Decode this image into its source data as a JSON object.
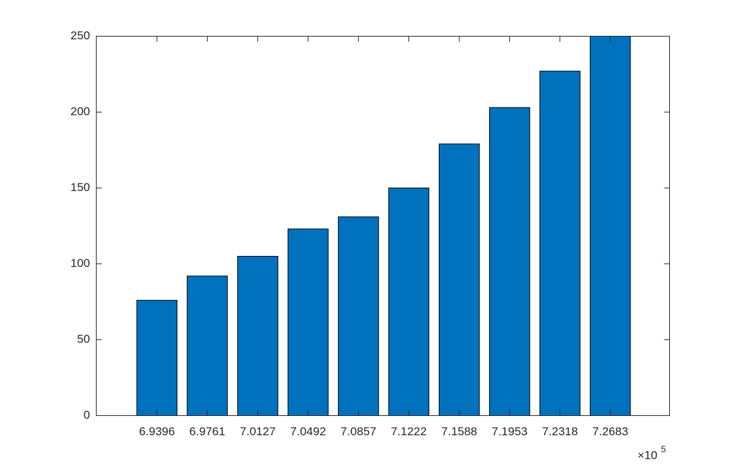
{
  "chart_data": {
    "type": "bar",
    "x": [
      6.9396,
      6.9761,
      7.0127,
      7.0492,
      7.0857,
      7.1222,
      7.1588,
      7.1953,
      7.2318,
      7.2683
    ],
    "values": [
      76,
      92,
      105,
      123,
      131,
      150,
      179,
      203,
      227,
      250
    ],
    "color": "#0072BD",
    "xlim": [
      6.8956,
      7.3113
    ],
    "xticks": [
      6.9396,
      6.9761,
      7.0127,
      7.0492,
      7.0857,
      7.1222,
      7.1588,
      7.1953,
      7.2318,
      7.2683
    ],
    "x_multiplier": {
      "base": "×10",
      "exponent": "5"
    },
    "ylim": [
      0,
      250
    ],
    "yticks": [
      0,
      50,
      100,
      150,
      200,
      250
    ],
    "grid": false
  }
}
